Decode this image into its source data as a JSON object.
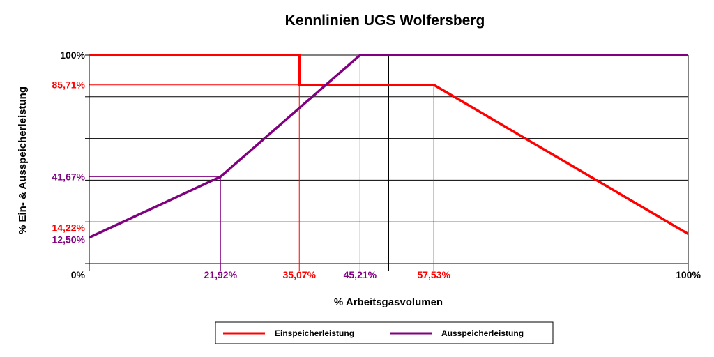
{
  "chart_data": {
    "type": "line",
    "title": "Kennlinien UGS Wolfersberg",
    "xlabel": "% Arbeitsgasvolumen",
    "ylabel": "% Ein- & Ausspeicherleistung",
    "xlim": [
      0,
      100
    ],
    "ylim": [
      0,
      100
    ],
    "grid": true,
    "legend": "bottom",
    "colors": {
      "Einspeicherleistung": "#ff0000",
      "Ausspeicherleistung": "#800080"
    },
    "series": [
      {
        "name": "Einspeicherleistung",
        "x": [
          0,
          35.07,
          35.07,
          57.53,
          100
        ],
        "y": [
          100,
          100,
          85.71,
          85.71,
          14.22
        ]
      },
      {
        "name": "Ausspeicherleistung",
        "x": [
          0,
          21.92,
          45.21,
          100
        ],
        "y": [
          12.5,
          41.67,
          100,
          100
        ]
      }
    ],
    "x_ticks": [
      {
        "value": 0,
        "label": "0%",
        "color": "#000000"
      },
      {
        "value": 21.92,
        "label": "21,92%",
        "color": "#800080"
      },
      {
        "value": 35.07,
        "label": "35,07%",
        "color": "#ff0000"
      },
      {
        "value": 45.21,
        "label": "45,21%",
        "color": "#800080"
      },
      {
        "value": 57.53,
        "label": "57,53%",
        "color": "#ff0000"
      },
      {
        "value": 100,
        "label": "100%",
        "color": "#000000"
      }
    ],
    "y_ticks": [
      {
        "value": 100,
        "label": "100%",
        "color": "#000000"
      },
      {
        "value": 85.71,
        "label": "85,71%",
        "color": "#ff0000"
      },
      {
        "value": 41.67,
        "label": "41,67%",
        "color": "#800080"
      },
      {
        "value": 14.22,
        "label": "14,22%",
        "color": "#ff0000"
      },
      {
        "value": 12.5,
        "label": "12,50%",
        "color": "#800080"
      }
    ],
    "gridlines_y": [
      0,
      20,
      40,
      60,
      80,
      100
    ],
    "gridline_x": 50,
    "reference_lines": [
      {
        "axis": "y",
        "value": 85.71,
        "to_x": 57.53,
        "color": "#ff0000"
      },
      {
        "axis": "y",
        "value": 14.22,
        "to_x": 100,
        "color": "#ff0000"
      },
      {
        "axis": "y",
        "value": 41.67,
        "to_x": 21.92,
        "color": "#800080"
      },
      {
        "axis": "x",
        "value": 21.92,
        "to_y": 41.67,
        "color": "#800080"
      },
      {
        "axis": "x",
        "value": 35.07,
        "to_y": 100,
        "color": "#ff0000"
      },
      {
        "axis": "x",
        "value": 45.21,
        "to_y": 100,
        "color": "#800080"
      },
      {
        "axis": "x",
        "value": 57.53,
        "to_y": 85.71,
        "color": "#ff0000"
      }
    ]
  }
}
